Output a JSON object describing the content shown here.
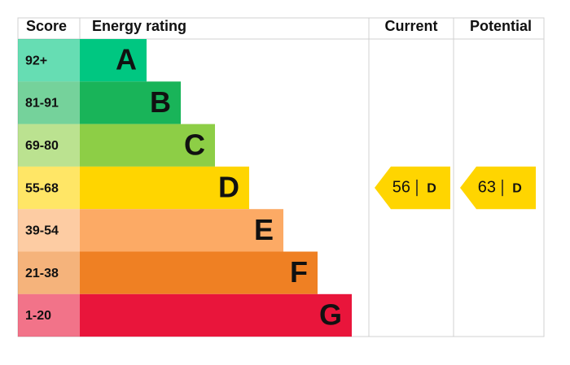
{
  "header": {
    "score": "Score",
    "energy_rating": "Energy rating",
    "current": "Current",
    "potential": "Potential"
  },
  "bands": [
    {
      "score": "92+",
      "letter": "A",
      "color": "#00c781"
    },
    {
      "score": "81-91",
      "letter": "B",
      "color": "#19b459"
    },
    {
      "score": "69-80",
      "letter": "C",
      "color": "#8dce46"
    },
    {
      "score": "55-68",
      "letter": "D",
      "color": "#ffd500"
    },
    {
      "score": "39-54",
      "letter": "E",
      "color": "#fcaa65"
    },
    {
      "score": "21-38",
      "letter": "F",
      "color": "#ef8023"
    },
    {
      "score": "1-20",
      "letter": "G",
      "color": "#e9153b"
    }
  ],
  "current": {
    "score": 56,
    "rating": "D"
  },
  "potential": {
    "score": 63,
    "rating": "D"
  }
}
